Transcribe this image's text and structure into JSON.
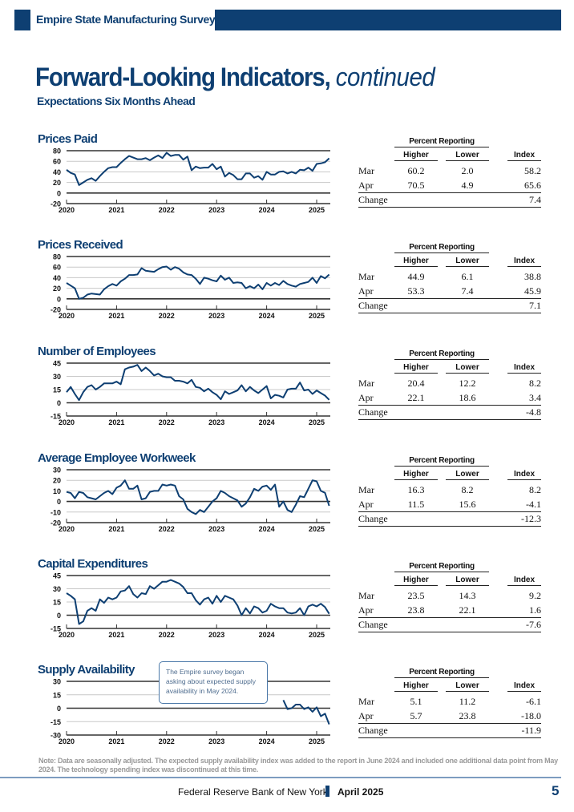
{
  "header": {
    "report_name": "Empire State Manufacturing Survey"
  },
  "title": {
    "main": "Forward-Looking Indicators, ",
    "italic": "continued",
    "subtitle": "Expectations Six Months Ahead"
  },
  "colors": {
    "brand": "#0e3f72",
    "series_line": "#0e3f72",
    "callout_border": "#4a78a8",
    "note_text": "#9a9a9a"
  },
  "table_labels": {
    "percent_reporting": "Percent Reporting",
    "higher": "Higher",
    "lower": "Lower",
    "index": "Index",
    "mar": "Mar",
    "apr": "Apr",
    "change": "Change"
  },
  "callout": {
    "text": "The Empire survey began asking about expected supply availability in May 2024."
  },
  "note": "Note: Data are seasonally adjusted. The expected supply availability index was added to the report in June 2024 and included one additional data point from May 2024. The technology spending index was discontinued at this time.",
  "footer": {
    "org": "Federal Reserve Bank of New York",
    "date": "April 2025",
    "page": "5"
  },
  "chart_data": [
    {
      "type": "line",
      "title": "Prices Paid",
      "x_start": "2020-01",
      "frequency": "monthly",
      "xticks": [
        "2020",
        "2021",
        "2022",
        "2023",
        "2024",
        "2025"
      ],
      "ylim": [
        -20,
        80
      ],
      "yticks": [
        "80",
        "60",
        "40",
        "20",
        "0",
        "-20"
      ],
      "ytick_values": [
        80,
        60,
        40,
        20,
        0,
        -20
      ],
      "values": [
        44,
        38,
        35,
        15,
        20,
        25,
        28,
        23,
        32,
        40,
        47,
        49,
        49,
        57,
        64,
        70,
        67,
        64,
        64,
        66,
        62,
        67,
        71,
        66,
        76,
        70,
        72,
        72,
        63,
        69,
        43,
        50,
        47,
        48,
        48,
        55,
        45,
        50,
        31,
        38,
        34,
        26,
        26,
        37,
        37,
        29,
        32,
        25,
        40,
        35,
        35,
        40,
        41,
        37,
        40,
        37,
        44,
        43,
        48,
        42,
        55,
        56,
        58.2,
        65.6
      ],
      "table": {
        "mar": [
          "60.2",
          "2.0",
          "58.2"
        ],
        "apr": [
          "70.5",
          "4.9",
          "65.6"
        ],
        "change": "7.4"
      }
    },
    {
      "type": "line",
      "title": "Prices Received",
      "x_start": "2020-01",
      "frequency": "monthly",
      "xticks": [
        "2020",
        "2021",
        "2022",
        "2023",
        "2024",
        "2025"
      ],
      "ylim": [
        -20,
        80
      ],
      "yticks": [
        "80",
        "60",
        "40",
        "20",
        "0",
        "-20"
      ],
      "ytick_values": [
        80,
        60,
        40,
        20,
        0,
        -20
      ],
      "values": [
        30,
        25,
        20,
        0,
        2,
        8,
        10,
        9,
        8,
        18,
        24,
        28,
        25,
        33,
        38,
        45,
        45,
        46,
        58,
        53,
        52,
        51,
        56,
        60,
        61,
        55,
        60,
        57,
        50,
        46,
        45,
        38,
        28,
        40,
        38,
        35,
        33,
        44,
        36,
        40,
        30,
        31,
        30,
        20,
        24,
        20,
        27,
        18,
        30,
        25,
        30,
        26,
        34,
        28,
        25,
        23,
        28,
        30,
        32,
        40,
        30,
        43,
        38.8,
        45.9
      ],
      "table": {
        "mar": [
          "44.9",
          "6.1",
          "38.8"
        ],
        "apr": [
          "53.3",
          "7.4",
          "45.9"
        ],
        "change": "7.1"
      }
    },
    {
      "type": "line",
      "title": "Number of Employees",
      "x_start": "2020-01",
      "frequency": "monthly",
      "xticks": [
        "2020",
        "2021",
        "2022",
        "2023",
        "2024",
        "2025"
      ],
      "ylim": [
        -15,
        45
      ],
      "yticks": [
        "45",
        "30",
        "15",
        "0",
        "-15"
      ],
      "ytick_values": [
        45,
        30,
        15,
        0,
        -15
      ],
      "values": [
        12,
        18,
        10,
        3,
        12,
        18,
        20,
        15,
        18,
        22,
        22,
        22,
        24,
        21,
        38,
        40,
        41,
        43,
        36,
        40,
        36,
        31,
        33,
        30,
        29,
        29,
        25,
        25,
        24,
        22,
        26,
        18,
        17,
        13,
        16,
        12,
        9,
        4,
        13,
        10,
        12,
        14,
        20,
        13,
        18,
        14,
        11,
        15,
        19,
        5,
        9,
        8,
        6,
        15,
        16,
        16,
        23,
        14,
        15,
        10,
        14,
        11,
        8.2,
        3.4
      ],
      "table": {
        "mar": [
          "20.4",
          "12.2",
          "8.2"
        ],
        "apr": [
          "22.1",
          "18.6",
          "3.4"
        ],
        "change": "-4.8"
      }
    },
    {
      "type": "line",
      "title": "Average Employee Workweek",
      "x_start": "2020-01",
      "frequency": "monthly",
      "xticks": [
        "2020",
        "2021",
        "2022",
        "2023",
        "2024",
        "2025"
      ],
      "ylim": [
        -20,
        30
      ],
      "yticks": [
        "30",
        "20",
        "10",
        "0",
        "-10",
        "-20"
      ],
      "ytick_values": [
        30,
        20,
        10,
        0,
        -10,
        -20
      ],
      "values": [
        9,
        8,
        3,
        9,
        8,
        4,
        3,
        2,
        5,
        8,
        10,
        7,
        13,
        15,
        20,
        12,
        12,
        15,
        2,
        3,
        9,
        10,
        10,
        16,
        15,
        16,
        15,
        5,
        2,
        -7,
        -10,
        -12,
        -8,
        -10,
        -5,
        0,
        3,
        10,
        8,
        5,
        3,
        1,
        -5,
        -2,
        4,
        12,
        10,
        14,
        15,
        11,
        16,
        -5,
        0,
        -8,
        -10,
        -3,
        5,
        4,
        12,
        20,
        19,
        10,
        8.2,
        -4.1
      ],
      "table": {
        "mar": [
          "16.3",
          "8.2",
          "8.2"
        ],
        "apr": [
          "11.5",
          "15.6",
          "-4.1"
        ],
        "change": "-12.3"
      }
    },
    {
      "type": "line",
      "title": "Capital Expenditures",
      "x_start": "2020-01",
      "frequency": "monthly",
      "xticks": [
        "2020",
        "2021",
        "2022",
        "2023",
        "2024",
        "2025"
      ],
      "ylim": [
        -15,
        45
      ],
      "yticks": [
        "45",
        "30",
        "15",
        "0",
        "-15"
      ],
      "ytick_values": [
        45,
        30,
        15,
        0,
        -15
      ],
      "values": [
        25,
        22,
        18,
        -10,
        -7,
        5,
        8,
        5,
        18,
        14,
        20,
        18,
        20,
        27,
        28,
        33,
        24,
        20,
        25,
        24,
        33,
        30,
        34,
        38,
        38,
        40,
        38,
        36,
        32,
        25,
        25,
        17,
        12,
        18,
        20,
        13,
        22,
        15,
        22,
        20,
        18,
        11,
        0,
        8,
        2,
        10,
        8,
        3,
        5,
        13,
        10,
        8,
        8,
        3,
        2,
        3,
        8,
        0,
        10,
        12,
        10,
        13,
        9.2,
        1.6
      ],
      "table": {
        "mar": [
          "23.5",
          "14.3",
          "9.2"
        ],
        "apr": [
          "23.8",
          "22.1",
          "1.6"
        ],
        "change": "-7.6"
      }
    },
    {
      "type": "line",
      "title": "Supply Availability",
      "x_start": "2024-05",
      "frequency": "monthly",
      "xticks": [
        "2020",
        "2021",
        "2022",
        "2023",
        "2024",
        "2025"
      ],
      "ylim": [
        -30,
        30
      ],
      "yticks": [
        "30",
        "15",
        "0",
        "-15",
        "-30"
      ],
      "ytick_values": [
        30,
        15,
        0,
        -15,
        -30
      ],
      "values": [
        9,
        -1,
        0,
        4,
        4,
        -1,
        1,
        -4,
        1,
        -9,
        -6.1,
        -18.0
      ],
      "table": {
        "mar": [
          "5.1",
          "11.2",
          "-6.1"
        ],
        "apr": [
          "5.7",
          "23.8",
          "-18.0"
        ],
        "change": "-11.9"
      }
    }
  ]
}
